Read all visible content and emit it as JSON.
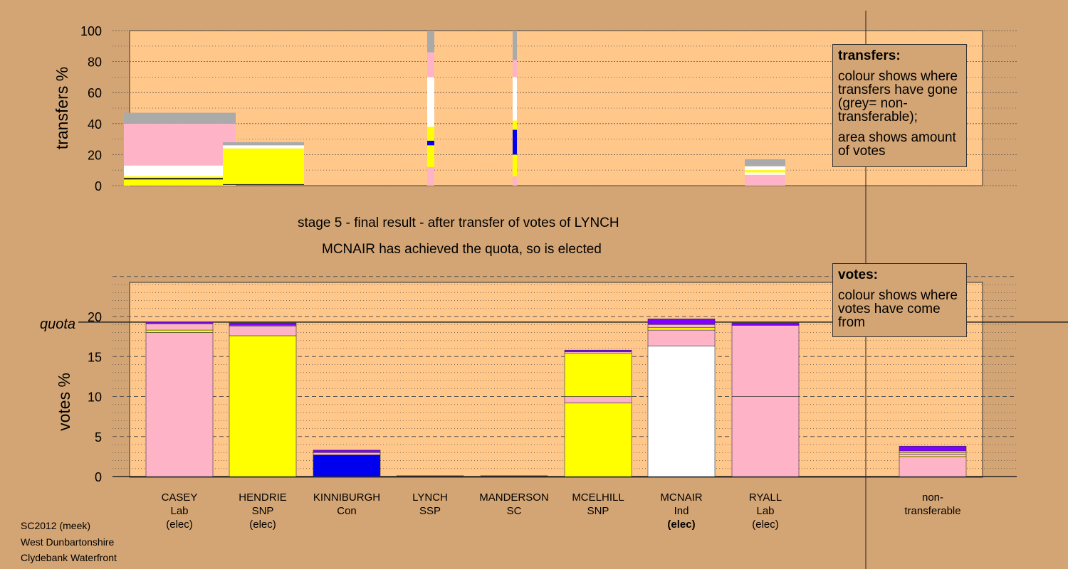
{
  "colors": {
    "background": "#d4a574",
    "plot": "#ffc78a",
    "Lab": "#ffb3c6",
    "SNP": "#ffff00",
    "Con": "#0000ee",
    "Ind": "#ffffff",
    "nontransferable": "#aaaaaa",
    "purple": "#7f00ff",
    "dark": "#222222"
  },
  "stage": {
    "title": "stage 5 - final result - after transfer of votes of LYNCH",
    "subtitle": "MCNAIR has achieved the quota, so is elected"
  },
  "legends": {
    "transfers": {
      "title": "transfers:",
      "para1": "colour shows where transfers have gone (grey= non-transferable);",
      "para2": "area shows amount of votes"
    },
    "votes": {
      "title": "votes:",
      "para1": "colour shows where votes have come from"
    }
  },
  "footer": [
    "SC2012 (meek)",
    "West Dunbartonshire",
    "Clydebank Waterfront"
  ],
  "candidates": [
    {
      "name": "CASEY",
      "party": "Lab",
      "status": "(elec)",
      "bold": false
    },
    {
      "name": "HENDRIE",
      "party": "SNP",
      "status": "(elec)",
      "bold": false
    },
    {
      "name": "KINNIBURGH",
      "party": "Con",
      "status": "",
      "bold": false
    },
    {
      "name": "LYNCH",
      "party": "SSP",
      "status": "",
      "bold": false
    },
    {
      "name": "MANDERSON",
      "party": "SC",
      "status": "",
      "bold": false
    },
    {
      "name": "MCELHILL",
      "party": "SNP",
      "status": "",
      "bold": false
    },
    {
      "name": "MCNAIR",
      "party": "Ind",
      "status": "(elec)",
      "bold": true
    },
    {
      "name": "RYALL",
      "party": "Lab",
      "status": "(elec)",
      "bold": false
    },
    {
      "name": "non-",
      "party": "transferable",
      "status": "",
      "bold": false
    }
  ],
  "chart_data": [
    {
      "type": "bar",
      "ylabel": "transfers %",
      "ylim": [
        0,
        100
      ],
      "yticks": [
        0,
        20,
        40,
        60,
        80,
        100
      ],
      "grid": true,
      "series": [
        {
          "stage_bar": 1,
          "segments": [
            {
              "color": "SNP",
              "from": 0,
              "to": 4
            },
            {
              "color": "dark",
              "from": 4,
              "to": 5
            },
            {
              "color": "SNP",
              "from": 5,
              "to": 6
            },
            {
              "color": "Ind",
              "from": 6,
              "to": 13
            },
            {
              "color": "Lab",
              "from": 13,
              "to": 40
            },
            {
              "color": "nontransferable",
              "from": 40,
              "to": 47
            }
          ]
        },
        {
          "stage_bar": 2,
          "segments": [
            {
              "color": "dark",
              "from": 0.5,
              "to": 1
            },
            {
              "color": "SNP",
              "from": 1,
              "to": 24
            },
            {
              "color": "Ind",
              "from": 24,
              "to": 26
            },
            {
              "color": "nontransferable",
              "from": 26,
              "to": 28
            }
          ]
        },
        {
          "stage_bar": 3,
          "segments": [
            {
              "color": "Lab",
              "from": 0,
              "to": 12
            },
            {
              "color": "SNP",
              "from": 12,
              "to": 26
            },
            {
              "color": "Con",
              "from": 26,
              "to": 29
            },
            {
              "color": "SNP",
              "from": 29,
              "to": 38
            },
            {
              "color": "Ind",
              "from": 38,
              "to": 70
            },
            {
              "color": "Lab",
              "from": 70,
              "to": 86
            },
            {
              "color": "nontransferable",
              "from": 86,
              "to": 100
            }
          ]
        },
        {
          "stage_bar": 4,
          "segments": [
            {
              "color": "Lab",
              "from": 0,
              "to": 6
            },
            {
              "color": "SNP",
              "from": 6,
              "to": 20
            },
            {
              "color": "Con",
              "from": 20,
              "to": 36
            },
            {
              "color": "SNP",
              "from": 36,
              "to": 42
            },
            {
              "color": "Ind",
              "from": 42,
              "to": 70
            },
            {
              "color": "Lab",
              "from": 70,
              "to": 81
            },
            {
              "color": "nontransferable",
              "from": 81,
              "to": 100
            }
          ]
        },
        {
          "stage_bar": 5,
          "segments": [
            {
              "color": "Lab",
              "from": 0,
              "to": 7
            },
            {
              "color": "Ind",
              "from": 7,
              "to": 8.5
            },
            {
              "color": "SNP",
              "from": 8.5,
              "to": 10
            },
            {
              "color": "Ind",
              "from": 10,
              "to": 12.5
            },
            {
              "color": "nontransferable",
              "from": 12.5,
              "to": 17
            }
          ]
        }
      ]
    },
    {
      "type": "bar",
      "ylabel": "votes %",
      "ylim": [
        0,
        25
      ],
      "yticks": [
        0,
        5,
        10,
        15,
        20
      ],
      "quota": 19.3,
      "quota_label": "quota",
      "grid": true,
      "categories": [
        "CASEY",
        "HENDRIE",
        "KINNIBURGH",
        "LYNCH",
        "MANDERSON",
        "MCELHILL",
        "MCNAIR",
        "RYALL",
        "non-transferable"
      ],
      "stacks": [
        [
          {
            "color": "Lab",
            "v": 18.0
          },
          {
            "color": "SNP",
            "v": 0.3
          },
          {
            "color": "Lab",
            "v": 0.8
          },
          {
            "color": "purple",
            "v": 0.2
          }
        ],
        [
          {
            "color": "SNP",
            "v": 17.6
          },
          {
            "color": "Lab",
            "v": 1.2
          },
          {
            "color": "Ind",
            "v": 0.1
          },
          {
            "color": "purple",
            "v": 0.3
          }
        ],
        [
          {
            "color": "Con",
            "v": 2.7
          },
          {
            "color": "Lab",
            "v": 0.3
          },
          {
            "color": "purple",
            "v": 0.3
          }
        ],
        [
          {
            "color": "dark",
            "v": 0.1
          }
        ],
        [
          {
            "color": "dark",
            "v": 0.1
          }
        ],
        [
          {
            "color": "SNP",
            "v": 9.2
          },
          {
            "color": "Lab",
            "v": 0.8
          },
          {
            "color": "SNP",
            "v": 5.4
          },
          {
            "color": "Lab",
            "v": 0.2
          },
          {
            "color": "purple",
            "v": 0.2
          }
        ],
        [
          {
            "color": "Ind",
            "v": 16.3
          },
          {
            "color": "Lab",
            "v": 2.0
          },
          {
            "color": "SNP",
            "v": 0.3
          },
          {
            "color": "Lab",
            "v": 0.4
          },
          {
            "color": "purple",
            "v": 0.7
          }
        ],
        [
          {
            "color": "Lab",
            "v": 10.0
          },
          {
            "color": "Lab",
            "v": 8.9
          },
          {
            "color": "purple",
            "v": 0.3
          }
        ],
        [
          {
            "color": "Lab",
            "v": 2.5
          },
          {
            "color": "SNP",
            "v": 0.2
          },
          {
            "color": "Lab",
            "v": 0.3
          },
          {
            "color": "SNP",
            "v": 0.2
          },
          {
            "color": "purple",
            "v": 0.6
          }
        ]
      ]
    }
  ]
}
